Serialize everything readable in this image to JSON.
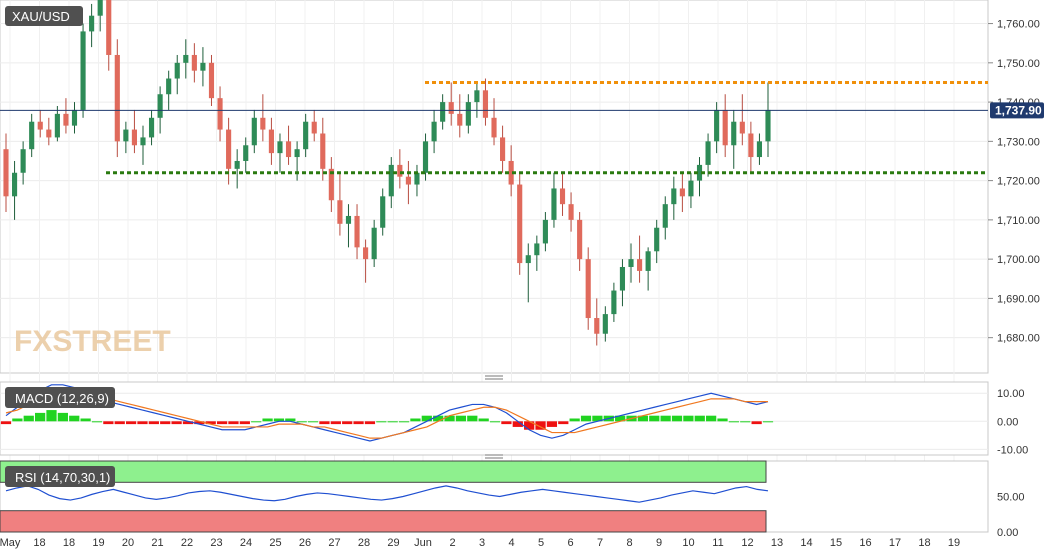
{
  "symbol": "XAU/USD",
  "watermark": "FXSTREET",
  "price_tag": "1,737.90",
  "macd_label": "MACD (12,26,9)",
  "rsi_label": "RSI (14,70,30,1)",
  "colors": {
    "bullish": "#2e8b57",
    "bearish": "#e06a5c",
    "resistance": "#f0900a",
    "support": "#2a7a10",
    "current_price_line": "#1f3a6e",
    "macd_line": "#1f4fd1",
    "signal_line": "#f07820",
    "hist_pos": "#21d321",
    "hist_neg": "#ee1111",
    "rsi_line": "#1f4fd1",
    "rsi_overbought_zone": "#8ef08e",
    "rsi_oversold_zone": "#f08080"
  },
  "chart_data": {
    "type": "candlestick",
    "title": "XAU/USD",
    "price_axis": {
      "ticks": [
        "1,680.00",
        "1,690.00",
        "1,700.00",
        "1,710.00",
        "1,720.00",
        "1,730.00",
        "1,740.00",
        "1,750.00",
        "1,760.00"
      ],
      "range": [
        1671,
        1766
      ]
    },
    "time_axis": {
      "labels": [
        "May",
        "18",
        "18",
        "19",
        "20",
        "21",
        "22",
        "23",
        "24",
        "25",
        "26",
        "27",
        "28",
        "29",
        "Jun",
        "2",
        "3",
        "4",
        "5",
        "6",
        "7",
        "8",
        "9",
        "10",
        "11",
        "12",
        "13",
        "14",
        "15",
        "16",
        "17",
        "18",
        "19"
      ],
      "start": "May 18",
      "end": "Jun 19"
    },
    "current_price": 1737.9,
    "horizontal_lines": [
      {
        "style": "dotted",
        "color": "orange",
        "value": 1745,
        "from": "May 29"
      },
      {
        "style": "dotted",
        "color": "green",
        "value": 1722,
        "from": "May 18"
      }
    ],
    "candles": [
      [
        1728,
        1732,
        1712,
        1716
      ],
      [
        1716,
        1725,
        1710,
        1722
      ],
      [
        1722,
        1730,
        1719,
        1728
      ],
      [
        1728,
        1737,
        1726,
        1735
      ],
      [
        1735,
        1738,
        1731,
        1733
      ],
      [
        1733,
        1736,
        1729,
        1731
      ],
      [
        1731,
        1739,
        1730,
        1737
      ],
      [
        1737,
        1741,
        1732,
        1734
      ],
      [
        1734,
        1740,
        1732,
        1738
      ],
      [
        1738,
        1760,
        1736,
        1758
      ],
      [
        1758,
        1765,
        1754,
        1762
      ],
      [
        1762,
        1768,
        1758,
        1766
      ],
      [
        1766,
        1770,
        1748,
        1752
      ],
      [
        1752,
        1756,
        1726,
        1730
      ],
      [
        1730,
        1735,
        1727,
        1733
      ],
      [
        1733,
        1738,
        1727,
        1729
      ],
      [
        1729,
        1734,
        1724,
        1731
      ],
      [
        1731,
        1738,
        1729,
        1736
      ],
      [
        1736,
        1744,
        1732,
        1742
      ],
      [
        1742,
        1748,
        1738,
        1746
      ],
      [
        1746,
        1752,
        1742,
        1750
      ],
      [
        1750,
        1756,
        1746,
        1752
      ],
      [
        1752,
        1755,
        1745,
        1748
      ],
      [
        1748,
        1754,
        1744,
        1750
      ],
      [
        1750,
        1752,
        1739,
        1741
      ],
      [
        1741,
        1744,
        1730,
        1733
      ],
      [
        1733,
        1736,
        1719,
        1723
      ],
      [
        1723,
        1728,
        1718,
        1725
      ],
      [
        1725,
        1731,
        1722,
        1729
      ],
      [
        1729,
        1738,
        1727,
        1736
      ],
      [
        1736,
        1742,
        1730,
        1733
      ],
      [
        1733,
        1736,
        1724,
        1727
      ],
      [
        1727,
        1732,
        1722,
        1730
      ],
      [
        1730,
        1734,
        1724,
        1726
      ],
      [
        1726,
        1730,
        1720,
        1728
      ],
      [
        1728,
        1737,
        1726,
        1735
      ],
      [
        1735,
        1738,
        1730,
        1732
      ],
      [
        1732,
        1736,
        1720,
        1723
      ],
      [
        1723,
        1726,
        1712,
        1715
      ],
      [
        1715,
        1722,
        1706,
        1709
      ],
      [
        1709,
        1714,
        1703,
        1711
      ],
      [
        1711,
        1714,
        1700,
        1703
      ],
      [
        1703,
        1705,
        1694,
        1700
      ],
      [
        1700,
        1710,
        1698,
        1708
      ],
      [
        1708,
        1718,
        1706,
        1716
      ],
      [
        1716,
        1726,
        1713,
        1724
      ],
      [
        1724,
        1728,
        1718,
        1721
      ],
      [
        1721,
        1725,
        1714,
        1719
      ],
      [
        1719,
        1724,
        1716,
        1722
      ],
      [
        1722,
        1732,
        1720,
        1730
      ],
      [
        1730,
        1738,
        1727,
        1735
      ],
      [
        1735,
        1742,
        1733,
        1740
      ],
      [
        1740,
        1745,
        1734,
        1737
      ],
      [
        1737,
        1742,
        1731,
        1734
      ],
      [
        1734,
        1742,
        1732,
        1740
      ],
      [
        1740,
        1745,
        1736,
        1743
      ],
      [
        1743,
        1746,
        1734,
        1736
      ],
      [
        1736,
        1741,
        1729,
        1731
      ],
      [
        1731,
        1734,
        1722,
        1725
      ],
      [
        1725,
        1729,
        1716,
        1719
      ],
      [
        1719,
        1722,
        1696,
        1699
      ],
      [
        1699,
        1704,
        1689,
        1701
      ],
      [
        1701,
        1706,
        1697,
        1704
      ],
      [
        1704,
        1712,
        1702,
        1710
      ],
      [
        1710,
        1722,
        1708,
        1718
      ],
      [
        1718,
        1722,
        1711,
        1714
      ],
      [
        1714,
        1717,
        1707,
        1710
      ],
      [
        1710,
        1712,
        1697,
        1700
      ],
      [
        1700,
        1703,
        1682,
        1685
      ],
      [
        1685,
        1690,
        1678,
        1681
      ],
      [
        1681,
        1688,
        1679,
        1686
      ],
      [
        1686,
        1694,
        1684,
        1692
      ],
      [
        1692,
        1700,
        1688,
        1698
      ],
      [
        1698,
        1704,
        1694,
        1700
      ],
      [
        1700,
        1706,
        1694,
        1697
      ],
      [
        1697,
        1703,
        1692,
        1702
      ],
      [
        1702,
        1710,
        1699,
        1708
      ],
      [
        1708,
        1716,
        1705,
        1714
      ],
      [
        1714,
        1721,
        1710,
        1718
      ],
      [
        1718,
        1722,
        1712,
        1716
      ],
      [
        1716,
        1722,
        1713,
        1720
      ],
      [
        1720,
        1726,
        1716,
        1724
      ],
      [
        1724,
        1732,
        1721,
        1730
      ],
      [
        1730,
        1740,
        1727,
        1738
      ],
      [
        1738,
        1742,
        1726,
        1729
      ],
      [
        1729,
        1738,
        1723,
        1735
      ],
      [
        1735,
        1742,
        1729,
        1732
      ],
      [
        1732,
        1735,
        1722,
        1726
      ],
      [
        1726,
        1732,
        1724,
        1730
      ],
      [
        1730,
        1745,
        1726,
        1738
      ]
    ],
    "macd": {
      "axis_ticks": [
        "-10.00",
        "0.00",
        "10.00"
      ],
      "range": [
        -12,
        14
      ],
      "macd_line": [
        2,
        5,
        8,
        11,
        13,
        13,
        12,
        11,
        9,
        7,
        6,
        5,
        4,
        3,
        2,
        1,
        0,
        -1,
        -2,
        -3,
        -3,
        -3,
        -2,
        -1,
        0,
        0,
        -1,
        -2,
        -3,
        -4,
        -5,
        -6,
        -7,
        -6,
        -5,
        -4,
        -2,
        0,
        2,
        4,
        5,
        6,
        6,
        5,
        3,
        0,
        -3,
        -5,
        -6,
        -5,
        -3,
        -1,
        0,
        1,
        2,
        3,
        4,
        5,
        6,
        7,
        8,
        9,
        10,
        9,
        8,
        7,
        6,
        7
      ],
      "signal_line": [
        3,
        4,
        6,
        8,
        9,
        10,
        10,
        10,
        9,
        8,
        7,
        6,
        5,
        4,
        3,
        2,
        1,
        0,
        -1,
        -2,
        -2,
        -2,
        -2,
        -2,
        -1,
        -1,
        -1,
        -2,
        -2,
        -3,
        -4,
        -5,
        -6,
        -6,
        -5,
        -4,
        -3,
        -2,
        0,
        2,
        3,
        4,
        5,
        5,
        4,
        2,
        0,
        -2,
        -4,
        -4,
        -4,
        -3,
        -2,
        -1,
        0,
        1,
        2,
        3,
        4,
        5,
        6,
        7,
        8,
        8,
        8,
        7,
        7,
        7
      ],
      "histogram": [
        -1,
        1,
        2,
        3,
        4,
        3,
        2,
        1,
        0,
        -1,
        -1,
        -1,
        -1,
        -1,
        -1,
        -1,
        -1,
        -1,
        -1,
        -1,
        -1,
        -1,
        0,
        1,
        1,
        1,
        0,
        0,
        -1,
        -1,
        -1,
        -1,
        -1,
        0,
        0,
        0,
        1,
        2,
        2,
        2,
        2,
        2,
        1,
        0,
        -1,
        -2,
        -3,
        -3,
        -2,
        -1,
        1,
        2,
        2,
        2,
        2,
        2,
        2,
        2,
        2,
        2,
        2,
        2,
        2,
        1,
        0,
        0,
        -1,
        0
      ]
    },
    "rsi": {
      "axis_ticks": [
        "0.00",
        "50.00"
      ],
      "range": [
        0,
        100
      ],
      "overbought": 70,
      "oversold": 30,
      "values": [
        58,
        62,
        65,
        60,
        52,
        47,
        45,
        48,
        53,
        57,
        60,
        56,
        52,
        48,
        46,
        48,
        51,
        55,
        57,
        58,
        56,
        53,
        50,
        47,
        45,
        44,
        46,
        50,
        53,
        55,
        54,
        52,
        50,
        48,
        46,
        45,
        47,
        50,
        54,
        58,
        62,
        65,
        62,
        58,
        55,
        52,
        50,
        53,
        56,
        58,
        60,
        58,
        56,
        54,
        52,
        50,
        48,
        46,
        44,
        42,
        45,
        48,
        52,
        55,
        58,
        56,
        54,
        58,
        62,
        64,
        60,
        58
      ]
    }
  }
}
